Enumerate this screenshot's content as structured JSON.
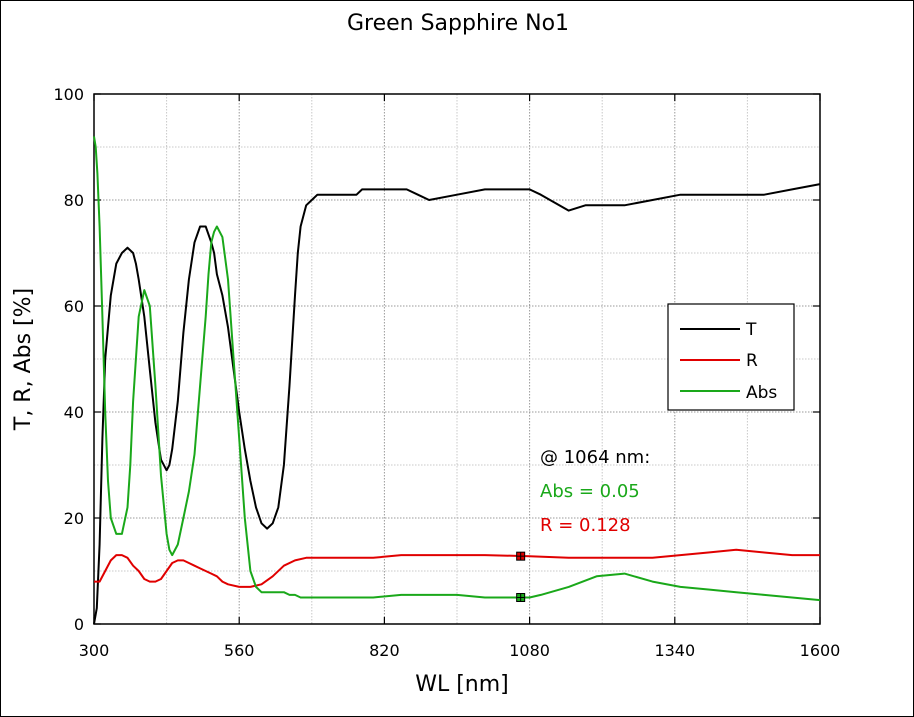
{
  "chart_data": {
    "type": "line",
    "title": "Green Sapphire No1",
    "xlabel": "WL [nm]",
    "ylabel": "T, R, Abs [%]",
    "xlim": [
      300,
      1600
    ],
    "ylim": [
      0,
      100
    ],
    "xticks": [
      300,
      560,
      820,
      1080,
      1340,
      1600
    ],
    "yticks": [
      0,
      20,
      40,
      60,
      80,
      100
    ],
    "grid": true,
    "legend_position": "right",
    "series": [
      {
        "name": "T",
        "color": "#000000",
        "x": [
          300,
          305,
          310,
          315,
          320,
          330,
          340,
          350,
          360,
          370,
          375,
          380,
          390,
          400,
          410,
          420,
          430,
          435,
          440,
          450,
          460,
          470,
          480,
          490,
          500,
          510,
          515,
          520,
          530,
          540,
          550,
          560,
          570,
          580,
          590,
          600,
          610,
          620,
          630,
          640,
          650,
          660,
          665,
          670,
          680,
          690,
          700,
          710,
          720,
          730,
          740,
          750,
          760,
          770,
          780,
          790,
          800,
          820,
          840,
          860,
          880,
          900,
          950,
          1000,
          1050,
          1080,
          1100,
          1150,
          1180,
          1200,
          1250,
          1300,
          1350,
          1400,
          1450,
          1500,
          1550,
          1600
        ],
        "y": [
          0,
          3,
          15,
          35,
          50,
          62,
          68,
          70,
          71,
          70,
          68,
          65,
          58,
          48,
          38,
          31,
          29,
          30,
          33,
          42,
          55,
          65,
          72,
          75,
          75,
          72,
          70,
          66,
          62,
          56,
          48,
          40,
          33,
          27,
          22,
          19,
          18,
          19,
          22,
          30,
          45,
          62,
          70,
          75,
          79,
          80,
          81,
          81,
          81,
          81,
          81,
          81,
          81,
          81,
          82,
          82,
          82,
          82,
          82,
          82,
          81,
          80,
          81,
          82,
          82,
          82,
          81,
          78,
          79,
          79,
          79,
          80,
          81,
          81,
          81,
          81,
          82,
          83
        ]
      },
      {
        "name": "R",
        "color": "#e00000",
        "x": [
          300,
          310,
          320,
          330,
          340,
          350,
          360,
          370,
          380,
          390,
          400,
          410,
          420,
          430,
          440,
          450,
          460,
          470,
          480,
          490,
          500,
          510,
          520,
          530,
          540,
          560,
          580,
          600,
          620,
          640,
          660,
          680,
          700,
          720,
          740,
          760,
          780,
          800,
          850,
          900,
          1000,
          1080,
          1150,
          1200,
          1250,
          1300,
          1350,
          1400,
          1450,
          1500,
          1550,
          1600
        ],
        "y": [
          8,
          8,
          10,
          12,
          13,
          13,
          12.5,
          11,
          10,
          8.5,
          8,
          8,
          8.5,
          10,
          11.5,
          12,
          12,
          11.5,
          11,
          10.5,
          10,
          9.5,
          9,
          8,
          7.5,
          7,
          7,
          7.5,
          9,
          11,
          12,
          12.5,
          12.5,
          12.5,
          12.5,
          12.5,
          12.5,
          12.5,
          13,
          13,
          13,
          12.8,
          12.5,
          12.5,
          12.5,
          12.5,
          13,
          13.5,
          14,
          13.5,
          13,
          13
        ]
      },
      {
        "name": "Abs",
        "color": "#1aa81a",
        "x": [
          300,
          303,
          306,
          310,
          315,
          320,
          325,
          330,
          340,
          350,
          360,
          365,
          370,
          380,
          390,
          400,
          410,
          420,
          430,
          435,
          440,
          450,
          460,
          470,
          480,
          490,
          500,
          505,
          510,
          515,
          520,
          530,
          540,
          550,
          560,
          570,
          580,
          590,
          600,
          610,
          620,
          630,
          640,
          650,
          660,
          670,
          680,
          690,
          700,
          710,
          720,
          730,
          740,
          760,
          780,
          800,
          850,
          900,
          950,
          1000,
          1080,
          1100,
          1150,
          1200,
          1250,
          1300,
          1350,
          1400,
          1450,
          1500,
          1550,
          1600
        ],
        "y": [
          92,
          90,
          85,
          75,
          58,
          40,
          27,
          20,
          17,
          17,
          22,
          30,
          42,
          58,
          63,
          60,
          45,
          28,
          17,
          14,
          13,
          15,
          20,
          25,
          32,
          45,
          58,
          66,
          72,
          74,
          75,
          73,
          65,
          50,
          35,
          20,
          10,
          7,
          6,
          6,
          6,
          6,
          6,
          5.5,
          5.5,
          5,
          5,
          5,
          5,
          5,
          5,
          5,
          5,
          5,
          5,
          5,
          5.5,
          5.5,
          5.5,
          5,
          5,
          5.5,
          7,
          9,
          9.5,
          8,
          7,
          6.5,
          6,
          5.5,
          5,
          4.5
        ]
      }
    ],
    "markers": [
      {
        "series": "R",
        "x": 1064,
        "y": 12.8,
        "color": "#e00000"
      },
      {
        "series": "Abs",
        "x": 1064,
        "y": 5.0,
        "color": "#1aa81a"
      }
    ],
    "annotations": [
      {
        "text": "@ 1064 nm:",
        "color": "#000000"
      },
      {
        "text": "Abs = 0.05",
        "color": "#1aa81a"
      },
      {
        "text": "R = 0.128",
        "color": "#e00000"
      }
    ]
  }
}
